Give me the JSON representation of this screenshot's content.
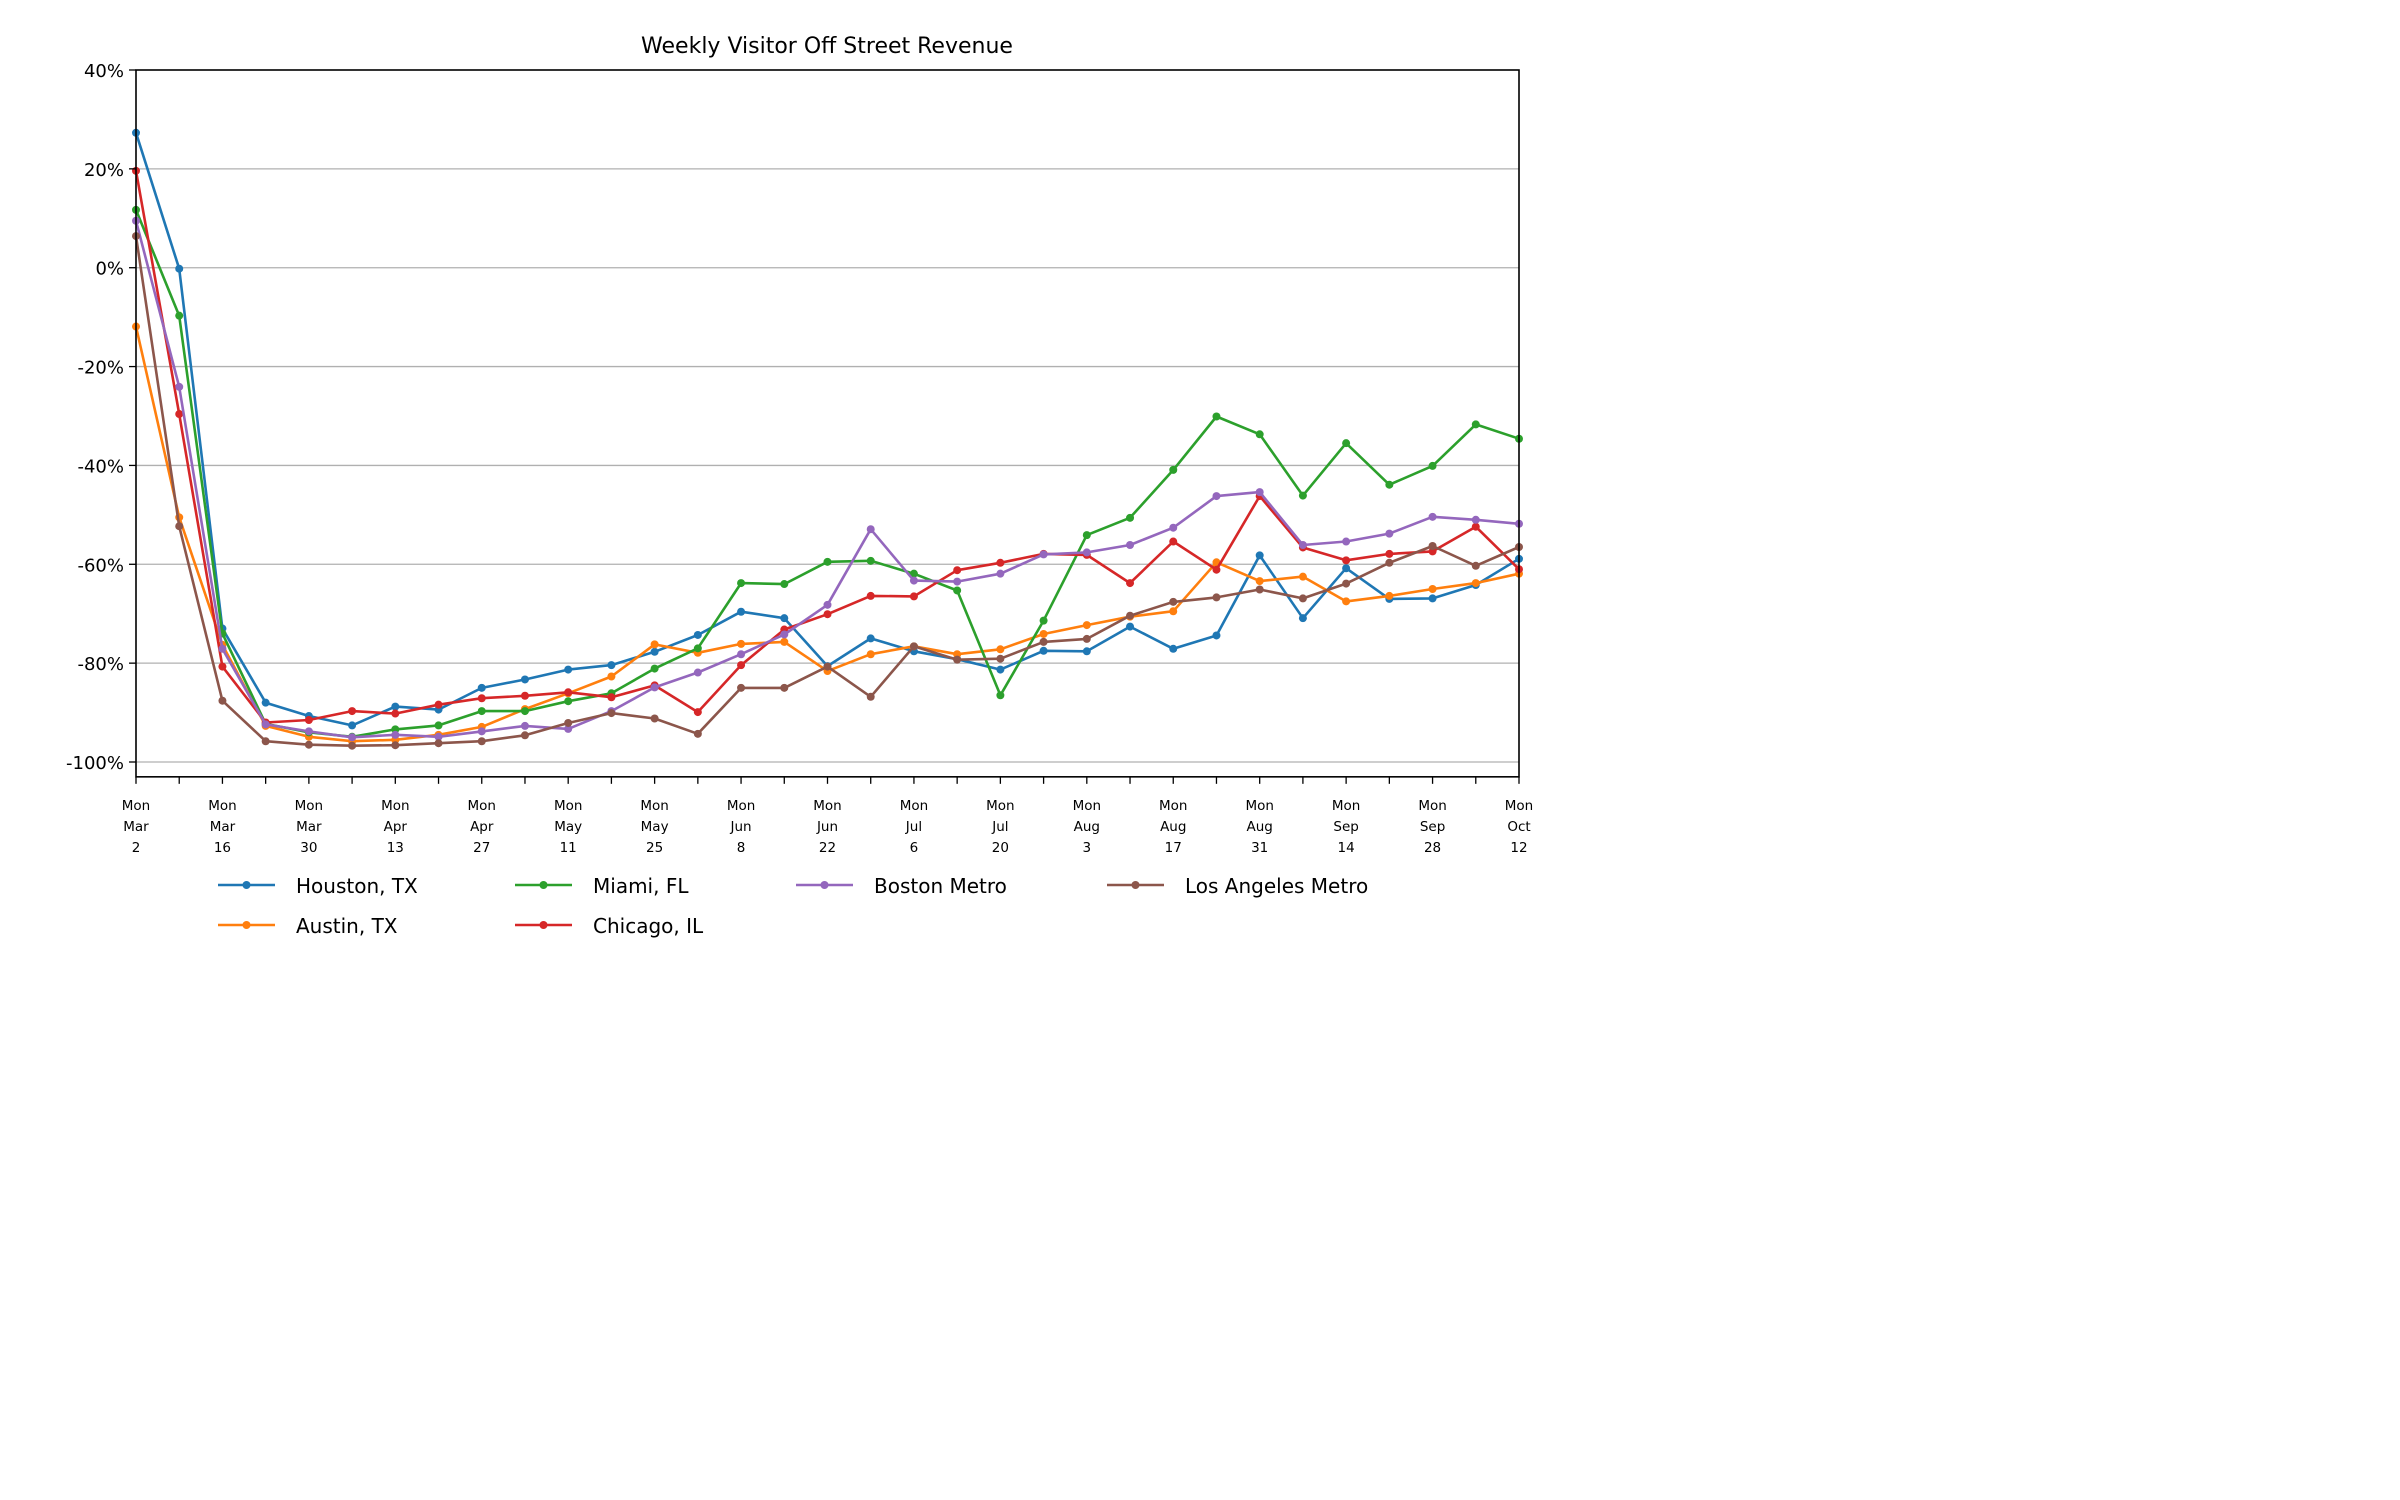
{
  "chart_data": {
    "type": "line",
    "title": "Weekly Visitor Off Street Revenue",
    "xlabel": "",
    "ylabel": "",
    "ylim": [
      -103,
      40
    ],
    "grid": "horizontal",
    "legend_position": "bottom-center",
    "y_ticks": [
      40,
      20,
      0,
      -20,
      -40,
      -60,
      -80,
      -100
    ],
    "y_tick_labels": [
      "40%",
      "20%",
      "0%",
      "-20%",
      "-40%",
      "-60%",
      "-80%",
      "-100%"
    ],
    "x": [
      "Mar 2",
      "Mar 9",
      "Mar 16",
      "Mar 23",
      "Mar 30",
      "Apr 6",
      "Apr 13",
      "Apr 20",
      "Apr 27",
      "May 4",
      "May 11",
      "May 18",
      "May 25",
      "Jun 1",
      "Jun 8",
      "Jun 15",
      "Jun 22",
      "Jun 29",
      "Jul 6",
      "Jul 13",
      "Jul 20",
      "Jul 27",
      "Aug 3",
      "Aug 10",
      "Aug 17",
      "Aug 24",
      "Aug 31",
      "Sep 7",
      "Sep 14",
      "Sep 21",
      "Sep 28",
      "Oct 5",
      "Oct 12"
    ],
    "x_tick_labels": [
      [
        "Mon",
        "Mar",
        "2"
      ],
      [
        "Mon",
        "Mar",
        "16"
      ],
      [
        "Mon",
        "Mar",
        "30"
      ],
      [
        "Mon",
        "Apr",
        "13"
      ],
      [
        "Mon",
        "Apr",
        "27"
      ],
      [
        "Mon",
        "May",
        "11"
      ],
      [
        "Mon",
        "May",
        "25"
      ],
      [
        "Mon",
        "Jun",
        "8"
      ],
      [
        "Mon",
        "Jun",
        "22"
      ],
      [
        "Mon",
        "Jul",
        "6"
      ],
      [
        "Mon",
        "Jul",
        "20"
      ],
      [
        "Mon",
        "Aug",
        "3"
      ],
      [
        "Mon",
        "Aug",
        "17"
      ],
      [
        "Mon",
        "Aug",
        "31"
      ],
      [
        "Mon",
        "Sep",
        "14"
      ],
      [
        "Mon",
        "Sep",
        "28"
      ],
      [
        "Mon",
        "Oct",
        "12"
      ]
    ],
    "series": [
      {
        "name": "Houston, TX",
        "color": "#1f77b4",
        "values": [
          27.3,
          -0.2,
          -73,
          -88,
          -90.7,
          -92.6,
          -88.8,
          -89.4,
          -85,
          -83.3,
          -81.3,
          -80.4,
          -77.7,
          -74.3,
          -69.6,
          -70.9,
          -80.6,
          -75,
          -77.6,
          -79.2,
          -81.3,
          -77.5,
          -77.6,
          -72.6,
          -77.1,
          -74.4,
          -58.2,
          -70.9,
          -60.8,
          -67,
          -66.9,
          -64.2,
          -58.9
        ]
      },
      {
        "name": "Austin, TX",
        "color": "#ff7f0e",
        "values": [
          -11.9,
          -50.5,
          -76.3,
          -92.7,
          -94.9,
          -95.8,
          -95.5,
          -94.5,
          -92.9,
          -89.3,
          -86.1,
          -82.7,
          -76.2,
          -77.9,
          -76.1,
          -75.7,
          -81.6,
          -78.2,
          -76.6,
          -78.2,
          -77.2,
          -74.1,
          -72.3,
          -70.6,
          -69.5,
          -59.6,
          -63.4,
          -62.5,
          -67.5,
          -66.4,
          -65,
          -63.8,
          -61.9
        ]
      },
      {
        "name": "Miami, FL",
        "color": "#2ca02c",
        "values": [
          11.7,
          -9.7,
          -74,
          -92.3,
          -94,
          -94.9,
          -93.4,
          -92.6,
          -89.7,
          -89.7,
          -87.7,
          -86.1,
          -81.1,
          -77,
          -63.8,
          -64,
          -59.5,
          -59.3,
          -61.9,
          -65.3,
          -86.5,
          -71.4,
          -54.1,
          -50.6,
          -40.9,
          -30.1,
          -33.7,
          -46.1,
          -35.5,
          -43.9,
          -40.1,
          -31.7,
          -34.6
        ]
      },
      {
        "name": "Chicago, IL",
        "color": "#d62728",
        "values": [
          19.6,
          -29.6,
          -80.7,
          -92,
          -91.5,
          -89.7,
          -90.2,
          -88.4,
          -87.1,
          -86.6,
          -85.9,
          -86.9,
          -84.5,
          -89.9,
          -80.4,
          -73.2,
          -70.1,
          -66.4,
          -66.5,
          -61.2,
          -59.7,
          -57.9,
          -58.1,
          -63.8,
          -55.4,
          -61.1,
          -46.2,
          -56.6,
          -59.2,
          -57.9,
          -57.4,
          -52.4,
          -61
        ]
      },
      {
        "name": "Boston Metro",
        "color": "#9467bd",
        "values": [
          9.5,
          -24.1,
          -77.1,
          -92.4,
          -93.8,
          -95,
          -94.5,
          -94.9,
          -93.8,
          -92.7,
          -93.3,
          -89.7,
          -84.9,
          -81.9,
          -78.2,
          -74.2,
          -68.2,
          -52.9,
          -63.3,
          -63.5,
          -61.9,
          -58,
          -57.6,
          -56.1,
          -52.6,
          -46.2,
          -45.4,
          -56.1,
          -55.4,
          -53.8,
          -50.4,
          -51,
          -51.8
        ]
      },
      {
        "name": "Los Angeles Metro",
        "color": "#8c564b",
        "values": [
          6.4,
          -52.3,
          -87.6,
          -95.8,
          -96.5,
          -96.7,
          -96.6,
          -96.2,
          -95.8,
          -94.6,
          -92.1,
          -90.1,
          -91.2,
          -94.3,
          -85,
          -85,
          -80.7,
          -86.8,
          -76.6,
          -79.3,
          -79.1,
          -75.7,
          -75.1,
          -70.4,
          -67.6,
          -66.7,
          -65.1,
          -66.9,
          -63.9,
          -59.7,
          -56.3,
          -60.3,
          -56.5
        ]
      }
    ],
    "legend_order": [
      0,
      2,
      4,
      5,
      1,
      3
    ]
  }
}
